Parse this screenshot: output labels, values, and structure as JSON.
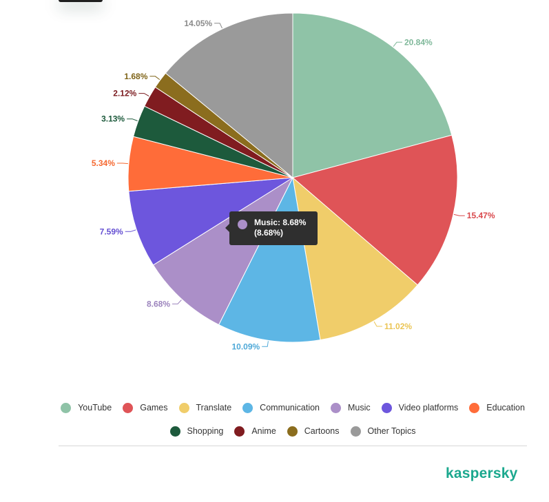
{
  "chart_data": {
    "type": "pie",
    "series": [
      {
        "name": "YouTube",
        "value": 20.84,
        "label": "20.84%",
        "color": "#8fc3a7"
      },
      {
        "name": "Games",
        "value": 15.47,
        "label": "15.47%",
        "color": "#df5457"
      },
      {
        "name": "Translate",
        "value": 11.02,
        "label": "11.02%",
        "color": "#f0cd6a"
      },
      {
        "name": "Communication",
        "value": 10.09,
        "label": "10.09%",
        "color": "#5db6e5"
      },
      {
        "name": "Music",
        "value": 8.68,
        "label": "8.68%",
        "color": "#ab8fc8"
      },
      {
        "name": "Video platforms",
        "value": 7.59,
        "label": "7.59%",
        "color": "#6d56dd"
      },
      {
        "name": "Education",
        "value": 5.34,
        "label": "5.34%",
        "color": "#ff6c39"
      },
      {
        "name": "Shopping",
        "value": 3.13,
        "label": "3.13%",
        "color": "#1d5a3c"
      },
      {
        "name": "Anime",
        "value": 2.12,
        "label": "2.12%",
        "color": "#801c20"
      },
      {
        "name": "Cartoons",
        "value": 1.68,
        "label": "1.68%",
        "color": "#8b6d1e"
      },
      {
        "name": "Other Topics",
        "value": 14.05,
        "label": "14.05%",
        "color": "#9a9a9a"
      }
    ],
    "legend_position": "bottom",
    "label_colors": {
      "YouTube": "#7fb89a",
      "Games": "#d9484c",
      "Translate": "#ebc554",
      "Communication": "#4fa9d8",
      "Music": "#9c84bd",
      "Video platforms": "#6550d2",
      "Education": "#f56830",
      "Shopping": "#1d5a3c",
      "Anime": "#7a1a1e",
      "Cartoons": "#7f6418",
      "Other Topics": "#8a8a8a"
    }
  },
  "tooltip": {
    "line1": "Music: 8.68%",
    "line2": "(8.68%)",
    "color": "#ab8fc8"
  },
  "legend": {
    "row1": [
      "YouTube",
      "Games",
      "Translate",
      "Communication",
      "Music",
      "Video platforms",
      "Education"
    ],
    "row2": [
      "Shopping",
      "Anime",
      "Cartoons",
      "Other Topics"
    ]
  },
  "brand": {
    "name": "kaspersky",
    "color": "#1ba88e"
  }
}
